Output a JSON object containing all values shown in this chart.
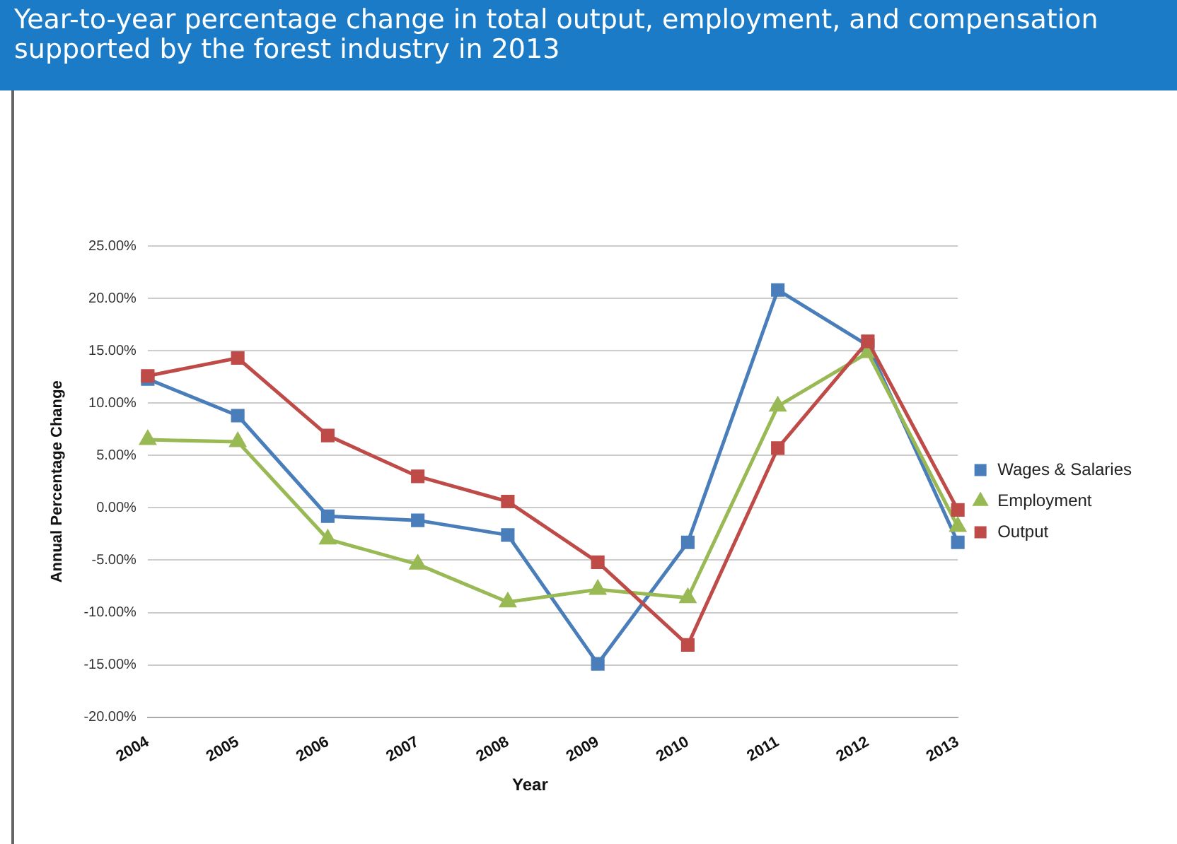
{
  "chart_data": {
    "type": "line",
    "title": "Year-to-year percentage change in total output, employment, and compensation supported by the forest industry in 2013",
    "xlabel": "Year",
    "ylabel": "Annual Percentage Change",
    "categories": [
      "2004",
      "2005",
      "2006",
      "2007",
      "2008",
      "2009",
      "2010",
      "2011",
      "2012",
      "2013"
    ],
    "series": [
      {
        "name": "Wages & Salaries",
        "color": "#4a7ebb",
        "marker": "square",
        "values": [
          12.3,
          8.8,
          -0.8,
          -1.2,
          -2.6,
          -14.9,
          -3.3,
          20.8,
          15.5,
          -3.3
        ]
      },
      {
        "name": "Employment",
        "color": "#98b954",
        "marker": "triangle",
        "values": [
          6.5,
          6.3,
          -3.0,
          -5.4,
          -9.0,
          -7.8,
          -8.6,
          9.7,
          14.8,
          -1.8
        ]
      },
      {
        "name": "Output",
        "color": "#be4b48",
        "marker": "square",
        "values": [
          12.6,
          14.3,
          6.9,
          3.0,
          0.6,
          -5.2,
          -13.1,
          5.7,
          15.9,
          -0.2
        ]
      }
    ],
    "ylim": [
      -20,
      25
    ],
    "yticks": [
      {
        "value": -20,
        "label": "-20.00%"
      },
      {
        "value": -15,
        "label": "-15.00%"
      },
      {
        "value": -10,
        "label": "-10.00%"
      },
      {
        "value": -5,
        "label": "-5.00%"
      },
      {
        "value": 0,
        "label": "0.00%"
      },
      {
        "value": 5,
        "label": "5.00%"
      },
      {
        "value": 10,
        "label": "10.00%"
      },
      {
        "value": 15,
        "label": "15.00%"
      },
      {
        "value": 20,
        "label": "20.00%"
      },
      {
        "value": 25,
        "label": "25.00%"
      }
    ],
    "grid": "y",
    "legend": "right",
    "line_style": "solid"
  }
}
